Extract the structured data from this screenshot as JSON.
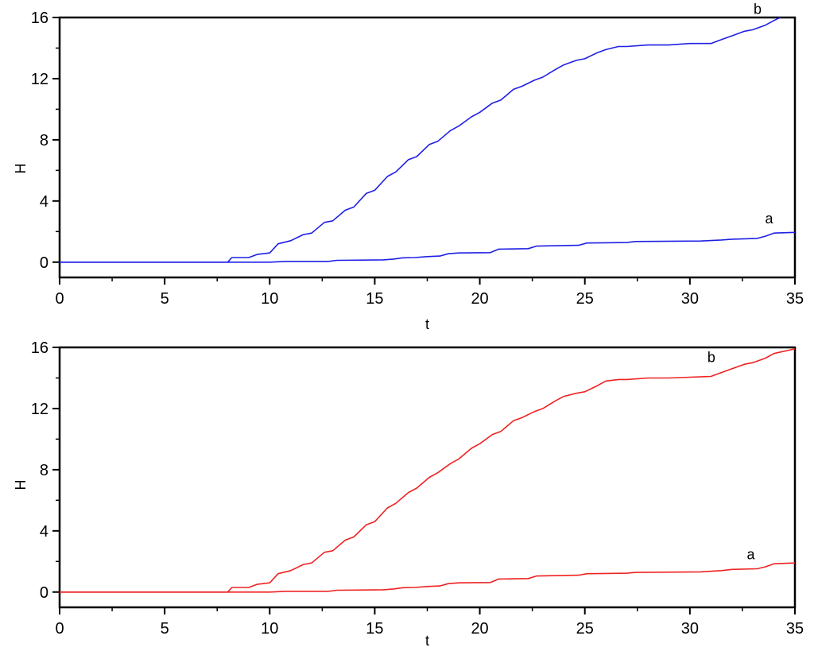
{
  "chart_data": [
    {
      "type": "line",
      "xlabel": "t",
      "ylabel": "H",
      "xlim": [
        0,
        35
      ],
      "ylim": [
        -1,
        16
      ],
      "xticks": [
        "0",
        "5",
        "10",
        "15",
        "20",
        "25",
        "30",
        "35"
      ],
      "yticks": [
        "0",
        "4",
        "8",
        "12",
        "16"
      ],
      "color": "#1f1fe6",
      "series": [
        {
          "name": "b",
          "x": [
            0,
            8.0,
            8.2,
            9.0,
            9.4,
            10.0,
            10.4,
            11.0,
            11.6,
            12.0,
            12.6,
            13.0,
            13.6,
            14.0,
            14.6,
            15.0,
            15.6,
            16.0,
            16.6,
            17.0,
            17.6,
            18.0,
            18.6,
            19.0,
            19.6,
            20.0,
            20.6,
            21.0,
            21.6,
            22.0,
            22.6,
            23.0,
            23.6,
            24.0,
            24.6,
            25.0,
            25.6,
            26.0,
            26.6,
            27.0,
            28.0,
            29.0,
            30.0,
            31.0,
            31.6,
            32.0,
            32.6,
            33.0,
            33.6,
            34.0,
            34.3
          ],
          "y": [
            0,
            0,
            0.3,
            0.3,
            0.5,
            0.6,
            1.2,
            1.4,
            1.8,
            1.9,
            2.6,
            2.7,
            3.4,
            3.6,
            4.5,
            4.7,
            5.6,
            5.9,
            6.7,
            6.9,
            7.7,
            7.9,
            8.6,
            8.9,
            9.5,
            9.8,
            10.4,
            10.6,
            11.3,
            11.5,
            11.9,
            12.1,
            12.6,
            12.9,
            13.2,
            13.3,
            13.7,
            13.9,
            14.1,
            14.1,
            14.2,
            14.2,
            14.3,
            14.3,
            14.6,
            14.8,
            15.1,
            15.2,
            15.5,
            15.8,
            16.0
          ]
        },
        {
          "name": "a",
          "x": [
            0,
            10.0,
            10.8,
            12.8,
            13.2,
            15.4,
            15.9,
            16.3,
            16.9,
            17.5,
            18.1,
            18.5,
            19.0,
            20.5,
            20.9,
            22.3,
            22.7,
            24.7,
            25.1,
            27.0,
            27.4,
            30.5,
            31.5,
            32.0,
            33.2,
            33.6,
            34.0,
            35.0
          ],
          "y": [
            0,
            0,
            0.05,
            0.05,
            0.12,
            0.15,
            0.2,
            0.28,
            0.3,
            0.36,
            0.4,
            0.55,
            0.6,
            0.62,
            0.85,
            0.88,
            1.05,
            1.1,
            1.25,
            1.28,
            1.35,
            1.38,
            1.45,
            1.5,
            1.55,
            1.7,
            1.9,
            1.95
          ]
        }
      ]
    },
    {
      "type": "line",
      "xlabel": "t",
      "ylabel": "H",
      "xlim": [
        0,
        35
      ],
      "ylim": [
        -1,
        16
      ],
      "xticks": [
        "0",
        "5",
        "10",
        "15",
        "20",
        "25",
        "30",
        "35"
      ],
      "yticks": [
        "0",
        "4",
        "8",
        "12",
        "16"
      ],
      "color": "#ee2222",
      "series": [
        {
          "name": "b",
          "x": [
            0,
            8.0,
            8.2,
            9.0,
            9.4,
            10.0,
            10.4,
            11.0,
            11.6,
            12.0,
            12.6,
            13.0,
            13.6,
            14.0,
            14.6,
            15.0,
            15.6,
            16.0,
            16.6,
            17.0,
            17.6,
            18.0,
            18.6,
            19.0,
            19.6,
            20.0,
            20.6,
            21.0,
            21.6,
            22.0,
            22.6,
            23.0,
            23.6,
            24.0,
            24.6,
            25.0,
            25.6,
            26.0,
            26.6,
            27.0,
            28.0,
            29.0,
            30.0,
            31.0,
            31.6,
            32.0,
            32.6,
            33.0,
            33.6,
            34.0,
            35.0
          ],
          "y": [
            0,
            0,
            0.3,
            0.3,
            0.5,
            0.6,
            1.2,
            1.4,
            1.8,
            1.9,
            2.6,
            2.7,
            3.4,
            3.6,
            4.4,
            4.6,
            5.5,
            5.8,
            6.5,
            6.8,
            7.5,
            7.8,
            8.4,
            8.7,
            9.4,
            9.7,
            10.3,
            10.5,
            11.2,
            11.4,
            11.8,
            12.0,
            12.5,
            12.8,
            13.0,
            13.1,
            13.5,
            13.8,
            13.9,
            13.9,
            14.0,
            14.0,
            14.05,
            14.1,
            14.4,
            14.6,
            14.9,
            15.0,
            15.3,
            15.6,
            15.9
          ]
        },
        {
          "name": "a",
          "x": [
            0,
            10.0,
            10.8,
            12.8,
            13.2,
            15.4,
            15.9,
            16.3,
            16.9,
            17.5,
            18.1,
            18.5,
            19.0,
            20.5,
            20.9,
            22.3,
            22.7,
            24.7,
            25.1,
            27.0,
            27.4,
            30.5,
            31.5,
            32.0,
            33.2,
            33.6,
            34.0,
            35.0
          ],
          "y": [
            0,
            0,
            0.05,
            0.05,
            0.12,
            0.15,
            0.2,
            0.28,
            0.3,
            0.36,
            0.4,
            0.55,
            0.6,
            0.62,
            0.85,
            0.88,
            1.05,
            1.1,
            1.2,
            1.23,
            1.28,
            1.32,
            1.4,
            1.48,
            1.52,
            1.65,
            1.85,
            1.9
          ]
        }
      ]
    }
  ]
}
